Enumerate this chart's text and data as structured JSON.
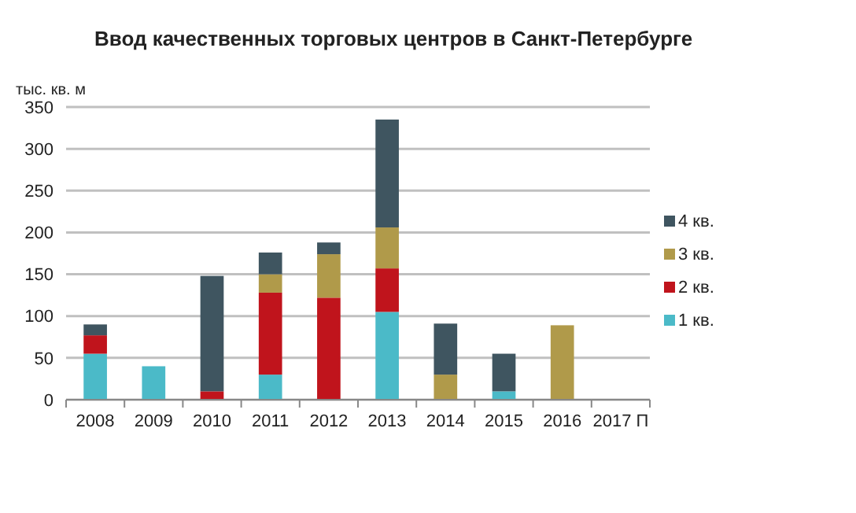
{
  "chart_data": {
    "type": "bar",
    "title": "Ввод качественных торговых центров в Санкт-Петербурге",
    "ylabel": "тыс. кв. м",
    "categories": [
      "2008",
      "2009",
      "2010",
      "2011",
      "2012",
      "2013",
      "2014",
      "2015",
      "2016",
      "2017 П"
    ],
    "stacked": true,
    "series": [
      {
        "name": "1 кв.",
        "color": "#4bbac8",
        "values": [
          55,
          40,
          0,
          30,
          0,
          105,
          0,
          10,
          0,
          null
        ]
      },
      {
        "name": "2 кв.",
        "color": "#c0141c",
        "values": [
          22,
          0,
          10,
          98,
          122,
          52,
          0,
          0,
          0,
          null
        ]
      },
      {
        "name": "3 кв.",
        "color": "#b09a4a",
        "values": [
          0,
          0,
          0,
          22,
          52,
          49,
          30,
          0,
          89,
          null
        ]
      },
      {
        "name": "4 кв.",
        "color": "#3f5560",
        "values": [
          13,
          0,
          138,
          26,
          14,
          129,
          61,
          45,
          0,
          null
        ]
      }
    ],
    "ylim": [
      0,
      350
    ],
    "yticks": [
      0,
      50,
      100,
      150,
      200,
      250,
      300,
      350
    ],
    "grid": "y",
    "legend": "right"
  }
}
